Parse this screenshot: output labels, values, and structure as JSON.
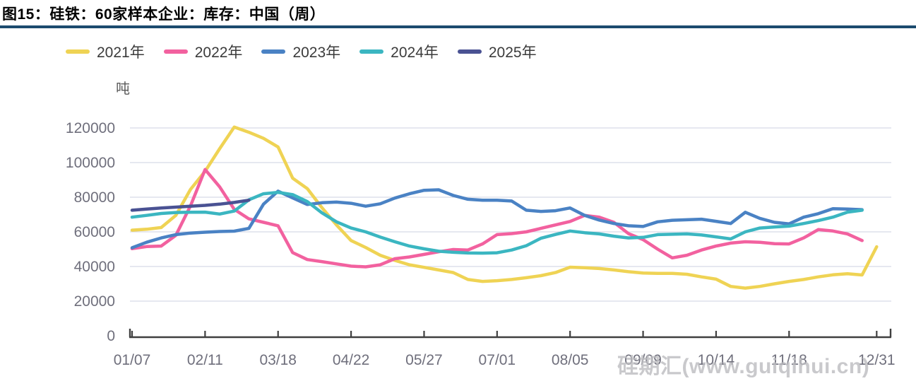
{
  "figure": {
    "title": "图15：硅铁：60家样本企业：库存：中国（周）"
  },
  "legend": {
    "items": [
      {
        "label": "2021年",
        "color": "#efd354"
      },
      {
        "label": "2022年",
        "color": "#f2619f"
      },
      {
        "label": "2023年",
        "color": "#4a82c4"
      },
      {
        "label": "2024年",
        "color": "#3bb6c1"
      },
      {
        "label": "2025年",
        "color": "#4a5293"
      }
    ]
  },
  "watermark": {
    "text": "硅期汇(www.guiqihui.cn)"
  },
  "style": {
    "title_rule_color": "#1c4b6e",
    "grid_color": "#d8dbe8",
    "axis_color": "#404040",
    "tick_label_color": "#6f6f7c",
    "unit_label_color": "#5a5a5a",
    "watermark_color": "#bcbcc0"
  },
  "chart_data": {
    "type": "line",
    "title": "图15：硅铁：60家样本企业：库存：中国（周）",
    "unit_label": "吨",
    "xlabel": "",
    "ylabel": "吨",
    "ylim": [
      0,
      120000
    ],
    "y_ticks": [
      0,
      20000,
      40000,
      60000,
      80000,
      100000,
      120000
    ],
    "grid": "horizontal",
    "legend_position": "top",
    "weeks_total": 52,
    "x_ticks": [
      {
        "label": "01/07",
        "week": 0
      },
      {
        "label": "02/11",
        "week": 5
      },
      {
        "label": "03/18",
        "week": 10
      },
      {
        "label": "04/22",
        "week": 15
      },
      {
        "label": "05/27",
        "week": 20
      },
      {
        "label": "07/01",
        "week": 25
      },
      {
        "label": "08/05",
        "week": 30
      },
      {
        "label": "09/09",
        "week": 35
      },
      {
        "label": "10/14",
        "week": 40
      },
      {
        "label": "11/18",
        "week": 45
      },
      {
        "label": "12/31",
        "week": 51
      }
    ],
    "series": [
      {
        "name": "2021年",
        "color": "#efd354",
        "start_week": 0,
        "values": [
          61000,
          61500,
          62500,
          69500,
          84500,
          95000,
          108000,
          120500,
          117500,
          114000,
          109000,
          91000,
          85000,
          74000,
          64000,
          55000,
          51000,
          46500,
          43500,
          41000,
          39500,
          38000,
          36500,
          32500,
          31400,
          31800,
          32500,
          33500,
          34700,
          36500,
          39600,
          39300,
          38800,
          38000,
          37000,
          36200,
          36000,
          36000,
          35500,
          34000,
          32700,
          28500,
          27500,
          28500,
          30000,
          31400,
          32500,
          34000,
          35200,
          35800,
          35100,
          51400
        ]
      },
      {
        "name": "2022年",
        "color": "#f2619f",
        "start_week": 0,
        "values": [
          50300,
          51500,
          51800,
          58000,
          75000,
          96000,
          86000,
          73000,
          67500,
          65500,
          63500,
          48000,
          44000,
          42800,
          41500,
          40200,
          39800,
          41000,
          44500,
          45500,
          47000,
          48500,
          49800,
          49500,
          53000,
          58400,
          59000,
          60000,
          62000,
          64000,
          66000,
          69500,
          68500,
          65500,
          59000,
          55500,
          50000,
          45000,
          46500,
          49500,
          51800,
          53500,
          54300,
          54000,
          53200,
          53000,
          56500,
          61300,
          60500,
          58800,
          55000
        ]
      },
      {
        "name": "2023年",
        "color": "#4a82c4",
        "start_week": 0,
        "values": [
          50800,
          54000,
          56500,
          58400,
          59300,
          59800,
          60200,
          60400,
          62000,
          76000,
          83500,
          79600,
          75800,
          76800,
          77200,
          76500,
          74800,
          76200,
          79500,
          82000,
          84000,
          84300,
          81000,
          78800,
          78300,
          78300,
          77800,
          72500,
          71800,
          72200,
          73800,
          69500,
          66800,
          64800,
          63500,
          63100,
          65800,
          66700,
          67000,
          67300,
          66100,
          64800,
          71300,
          67800,
          65500,
          64600,
          68500,
          70500,
          73400,
          73200,
          72800
        ]
      },
      {
        "name": "2024年",
        "color": "#3bb6c1",
        "start_week": 0,
        "values": [
          68500,
          69500,
          70600,
          71200,
          71300,
          71400,
          70300,
          72000,
          78500,
          82000,
          82800,
          81500,
          77500,
          71000,
          65800,
          62200,
          60000,
          57000,
          54300,
          51800,
          50200,
          48800,
          48200,
          47800,
          47700,
          47900,
          49500,
          52000,
          56300,
          58500,
          60500,
          59500,
          58800,
          57500,
          56500,
          56800,
          58400,
          58600,
          58800,
          58200,
          57100,
          55900,
          60000,
          62200,
          62800,
          63300,
          64800,
          66500,
          68500,
          71400,
          72500
        ]
      },
      {
        "name": "2025年",
        "color": "#4a5293",
        "start_week": 0,
        "values": [
          72500,
          73200,
          73800,
          74300,
          74800,
          75300,
          76000,
          77000,
          78300
        ]
      }
    ]
  }
}
